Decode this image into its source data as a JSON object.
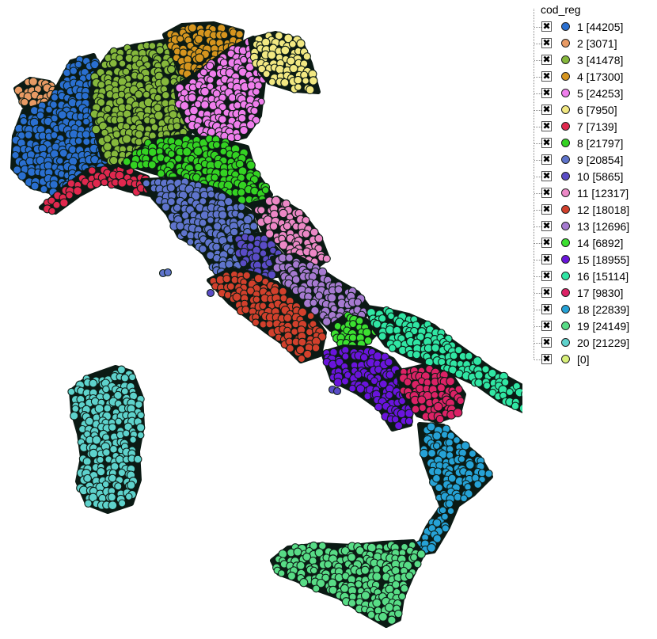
{
  "legend": {
    "title": "cod_reg",
    "entries": [
      {
        "label": "1 [44205]",
        "color": "#2a6fd0"
      },
      {
        "label": "2 [3071]",
        "color": "#e89a64"
      },
      {
        "label": "3 [41478]",
        "color": "#86b83c"
      },
      {
        "label": "4 [17300]",
        "color": "#d6951e"
      },
      {
        "label": "5 [24253]",
        "color": "#ef7eec"
      },
      {
        "label": "6 [7950]",
        "color": "#f2e882"
      },
      {
        "label": "7 [7139]",
        "color": "#e0284e"
      },
      {
        "label": "8 [21797]",
        "color": "#34d322"
      },
      {
        "label": "9 [20854]",
        "color": "#5f74cc"
      },
      {
        "label": "10 [5865]",
        "color": "#5a4cc6"
      },
      {
        "label": "11 [12317]",
        "color": "#ec88c6"
      },
      {
        "label": "12 [18018]",
        "color": "#d2402c"
      },
      {
        "label": "13 [12696]",
        "color": "#a67ad0"
      },
      {
        "label": "14 [6892]",
        "color": "#3ce030"
      },
      {
        "label": "15 [18955]",
        "color": "#6a14dc"
      },
      {
        "label": "16 [15114]",
        "color": "#30e6a4"
      },
      {
        "label": "17 [9830]",
        "color": "#dc2266"
      },
      {
        "label": "18 [22839]",
        "color": "#26a2d6"
      },
      {
        "label": "19 [24149]",
        "color": "#58dc86"
      },
      {
        "label": "20 [21229]",
        "color": "#5ed2cc"
      },
      {
        "label": " [0]",
        "color": "#d8f07a"
      }
    ]
  }
}
